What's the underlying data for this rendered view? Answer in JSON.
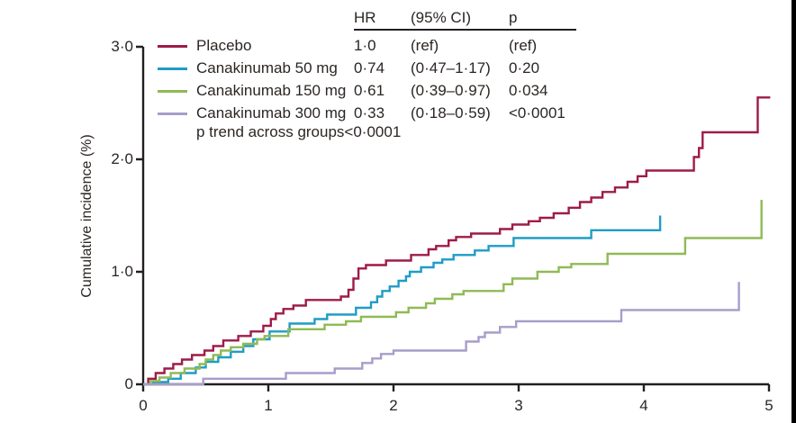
{
  "figure": {
    "y_axis": {
      "label": "Cumulative incidence (%)",
      "ticks": [
        "3·0",
        "2·0",
        "1·0",
        "0"
      ]
    },
    "x_axis": {
      "ticks": [
        "0",
        "1",
        "2",
        "3",
        "4",
        "5"
      ]
    }
  },
  "legend": {
    "items": [
      {
        "label": "Placebo"
      },
      {
        "label": "Canakinumab 50 mg"
      },
      {
        "label": "Canakinumab 150 mg"
      },
      {
        "label": "Canakinumab 300 mg"
      }
    ],
    "note": "p trend across groups<0·0001"
  },
  "stats_table": {
    "headers": [
      "HR",
      "(95% CI)",
      "p"
    ],
    "rows": [
      [
        "1·0",
        "(ref)",
        "(ref)"
      ],
      [
        "0·74",
        "(0·47–1·17)",
        "0·20"
      ],
      [
        "0·61",
        "(0·39–0·97)",
        "0·034"
      ],
      [
        "0·33",
        "(0·18–0·59)",
        "<0·0001"
      ]
    ]
  },
  "chart_data": {
    "type": "line",
    "subtype": "kaplan-meier-step",
    "title": "",
    "xlabel": "",
    "ylabel": "Cumulative incidence (%)",
    "xlim": [
      0,
      5
    ],
    "ylim": [
      0,
      3.0
    ],
    "x_ticks": [
      0,
      1,
      2,
      3,
      4,
      5
    ],
    "y_ticks": [
      0,
      1.0,
      2.0,
      3.0
    ],
    "grid": false,
    "legend_position": "top-left",
    "axis_color": "#231f20",
    "series": [
      {
        "name": "Placebo",
        "color": "#9e1b49",
        "hr": "1·0",
        "ci_95": "(ref)",
        "p": "(ref)",
        "end_x": 5.01,
        "steps": [
          [
            0.04,
            0.05
          ],
          [
            0.1,
            0.1
          ],
          [
            0.17,
            0.14
          ],
          [
            0.24,
            0.18
          ],
          [
            0.31,
            0.22
          ],
          [
            0.39,
            0.26
          ],
          [
            0.49,
            0.3
          ],
          [
            0.56,
            0.34
          ],
          [
            0.64,
            0.39
          ],
          [
            0.76,
            0.43
          ],
          [
            0.86,
            0.47
          ],
          [
            0.96,
            0.52
          ],
          [
            1.02,
            0.58
          ],
          [
            1.06,
            0.63
          ],
          [
            1.12,
            0.67
          ],
          [
            1.2,
            0.7
          ],
          [
            1.3,
            0.75
          ],
          [
            1.58,
            0.78
          ],
          [
            1.64,
            0.84
          ],
          [
            1.68,
            0.94
          ],
          [
            1.72,
            1.03
          ],
          [
            1.78,
            1.06
          ],
          [
            1.94,
            1.1
          ],
          [
            2.14,
            1.15
          ],
          [
            2.28,
            1.2
          ],
          [
            2.34,
            1.23
          ],
          [
            2.44,
            1.28
          ],
          [
            2.5,
            1.31
          ],
          [
            2.62,
            1.34
          ],
          [
            2.85,
            1.38
          ],
          [
            2.95,
            1.42
          ],
          [
            3.08,
            1.45
          ],
          [
            3.17,
            1.48
          ],
          [
            3.28,
            1.52
          ],
          [
            3.4,
            1.57
          ],
          [
            3.49,
            1.62
          ],
          [
            3.58,
            1.66
          ],
          [
            3.67,
            1.71
          ],
          [
            3.77,
            1.75
          ],
          [
            3.87,
            1.8
          ],
          [
            3.95,
            1.85
          ],
          [
            4.02,
            1.9
          ],
          [
            4.4,
            2.02
          ],
          [
            4.44,
            2.1
          ],
          [
            4.47,
            2.24
          ],
          [
            4.91,
            2.55
          ]
        ]
      },
      {
        "name": "Canakinumab 50 mg",
        "color": "#1f9cc5",
        "hr": "0·74",
        "ci_95": "(0·47–1·17)",
        "p": "0·20",
        "steps": [
          [
            0.08,
            0.02
          ],
          [
            0.2,
            0.05
          ],
          [
            0.3,
            0.1
          ],
          [
            0.42,
            0.15
          ],
          [
            0.5,
            0.2
          ],
          [
            0.6,
            0.24
          ],
          [
            0.7,
            0.29
          ],
          [
            0.8,
            0.34
          ],
          [
            0.88,
            0.4
          ],
          [
            1.01,
            0.47
          ],
          [
            1.17,
            0.54
          ],
          [
            1.37,
            0.58
          ],
          [
            1.47,
            0.62
          ],
          [
            1.7,
            0.68
          ],
          [
            1.82,
            0.73
          ],
          [
            1.87,
            0.78
          ],
          [
            1.91,
            0.83
          ],
          [
            1.97,
            0.87
          ],
          [
            2.04,
            0.92
          ],
          [
            2.1,
            0.96
          ],
          [
            2.13,
            1.0
          ],
          [
            2.22,
            1.04
          ],
          [
            2.32,
            1.08
          ],
          [
            2.39,
            1.11
          ],
          [
            2.48,
            1.15
          ],
          [
            2.65,
            1.19
          ],
          [
            2.76,
            1.23
          ],
          [
            2.96,
            1.3
          ],
          [
            3.58,
            1.37
          ],
          [
            4.13,
            1.5
          ]
        ]
      },
      {
        "name": "Canakinumab 150 mg",
        "color": "#8fba55",
        "hr": "0·61",
        "ci_95": "(0·39–0·97)",
        "p": "0·034",
        "steps": [
          [
            0.06,
            0.03
          ],
          [
            0.13,
            0.06
          ],
          [
            0.22,
            0.1
          ],
          [
            0.33,
            0.14
          ],
          [
            0.45,
            0.18
          ],
          [
            0.5,
            0.22
          ],
          [
            0.56,
            0.26
          ],
          [
            0.62,
            0.3
          ],
          [
            0.7,
            0.33
          ],
          [
            0.8,
            0.36
          ],
          [
            0.91,
            0.4
          ],
          [
            0.97,
            0.43
          ],
          [
            1.16,
            0.49
          ],
          [
            1.45,
            0.53
          ],
          [
            1.62,
            0.56
          ],
          [
            1.74,
            0.6
          ],
          [
            2.02,
            0.64
          ],
          [
            2.12,
            0.68
          ],
          [
            2.26,
            0.72
          ],
          [
            2.33,
            0.76
          ],
          [
            2.47,
            0.8
          ],
          [
            2.56,
            0.83
          ],
          [
            2.88,
            0.89
          ],
          [
            2.95,
            0.94
          ],
          [
            3.15,
            1.0
          ],
          [
            3.32,
            1.04
          ],
          [
            3.42,
            1.07
          ],
          [
            3.71,
            1.16
          ],
          [
            4.33,
            1.3
          ],
          [
            4.94,
            1.64
          ]
        ]
      },
      {
        "name": "Canakinumab 300 mg",
        "color": "#a89dca",
        "hr": "0·33",
        "ci_95": "(0·18–0·59)",
        "p": "<0·0001",
        "steps": [
          [
            0.48,
            0.05
          ],
          [
            1.14,
            0.1
          ],
          [
            1.53,
            0.14
          ],
          [
            1.75,
            0.19
          ],
          [
            1.83,
            0.23
          ],
          [
            1.9,
            0.27
          ],
          [
            2.0,
            0.3
          ],
          [
            2.58,
            0.38
          ],
          [
            2.68,
            0.42
          ],
          [
            2.73,
            0.46
          ],
          [
            2.85,
            0.51
          ],
          [
            2.98,
            0.56
          ],
          [
            3.82,
            0.66
          ],
          [
            4.76,
            0.91
          ]
        ]
      }
    ],
    "annotations": [
      "p trend across groups<0·0001"
    ]
  }
}
